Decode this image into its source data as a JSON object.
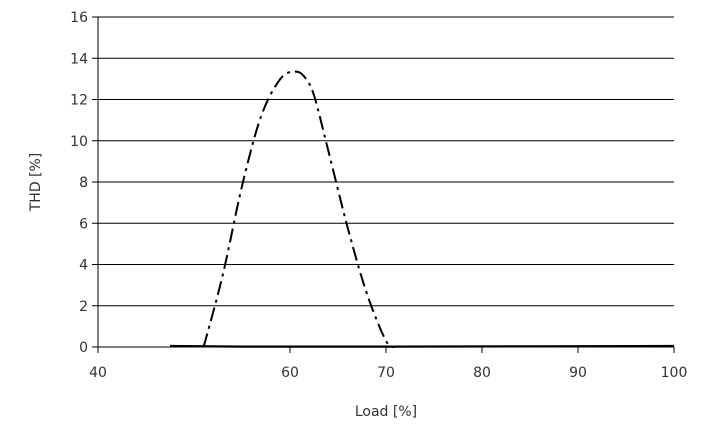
{
  "chart_data": {
    "type": "line",
    "title": "",
    "xlabel": "Load [%]",
    "ylabel": "THD [%]",
    "xlim": [
      40,
      100
    ],
    "ylim": [
      0,
      16
    ],
    "x_ticks": [
      "40",
      "60",
      "70",
      "80",
      "90",
      "100"
    ],
    "y_ticks": [
      "0",
      "2",
      "4",
      "6",
      "8",
      "10",
      "12",
      "14",
      "16"
    ],
    "grid": "horizontal",
    "legend": "none",
    "series": [
      {
        "style": "dash-dot",
        "color": "#000000",
        "x": [
          51,
          53,
          55,
          57,
          59,
          60.5,
          61.5,
          62.5,
          64,
          66,
          68,
          70,
          71
        ],
        "y": [
          0,
          3.5,
          7.8,
          11.2,
          13.0,
          13.35,
          13.1,
          12.2,
          9.5,
          5.8,
          2.6,
          0.3,
          0
        ]
      },
      {
        "style": "solid",
        "color": "#000000",
        "x": [
          47.5,
          55,
          70,
          85,
          100
        ],
        "y": [
          0.05,
          0.02,
          0.02,
          0.03,
          0.05
        ]
      }
    ]
  }
}
